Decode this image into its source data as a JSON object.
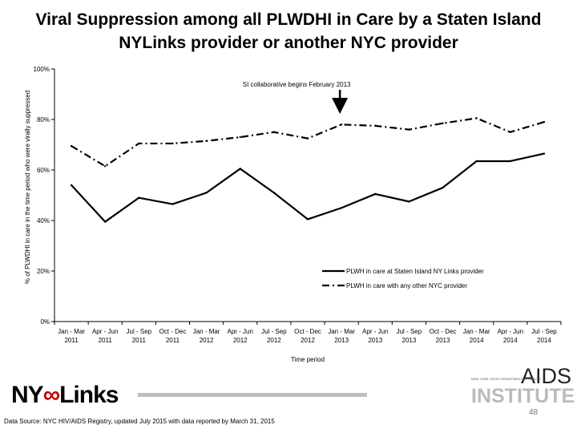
{
  "title": "Viral Suppression among all PLWDHI in Care by a Staten Island NYLinks provider or another NYC provider",
  "chart_data": {
    "type": "line",
    "title": "Viral Suppression among all PLWDHI in Care by a Staten Island NYLinks provider or another NYC provider",
    "xlabel": "Time period",
    "ylabel": "% of PLWDHI in care in the time period who were virally suppressed",
    "ylim": [
      0,
      100
    ],
    "yticks": [
      "0%",
      "20%",
      "40%",
      "60%",
      "80%",
      "100%"
    ],
    "grid": false,
    "legend_position": "bottom-right",
    "categories": [
      [
        "Jan - Mar",
        "2011"
      ],
      [
        "Apr - Jun",
        "2011"
      ],
      [
        "Jul - Sep",
        "2011"
      ],
      [
        "Oct - Dec",
        "2011"
      ],
      [
        "Jan - Mar",
        "2012"
      ],
      [
        "Apr - Jun",
        "2012"
      ],
      [
        "Jul - Sep",
        "2012"
      ],
      [
        "Oct - Dec",
        "2012"
      ],
      [
        "Jan - Mar",
        "2013"
      ],
      [
        "Apr - Jun",
        "2013"
      ],
      [
        "Jul - Sep",
        "2013"
      ],
      [
        "Oct - Dec",
        "2013"
      ],
      [
        "Jan - Mar",
        "2014"
      ],
      [
        "Apr - Jun",
        "2014"
      ],
      [
        "Jul - Sep",
        "2014"
      ]
    ],
    "series": [
      {
        "name": "PLWH in care at Staten Island NY Links provider",
        "style": "solid",
        "color": "#000000",
        "values": [
          54,
          39.5,
          49,
          46.5,
          51,
          60.5,
          51,
          40.5,
          45,
          50.5,
          47.5,
          53,
          63.5,
          63.5,
          66.5
        ]
      },
      {
        "name": "PLWH in care with any other NYC provider",
        "style": "dash-dot",
        "color": "#000000",
        "values": [
          69.5,
          61.5,
          70.5,
          70.5,
          71.5,
          73,
          75,
          72.5,
          78,
          77.5,
          76,
          78.5,
          80.5,
          75,
          79
        ]
      }
    ],
    "annotations": [
      {
        "text": "SI collaborative begins February 2013",
        "x_index": 8
      }
    ]
  },
  "footer": {
    "source": "Data Source: NYC HIV/AIDS Registry, updated July 2015 with data reported by March 31, 2015",
    "page_number": "48"
  },
  "logos": {
    "left": "NY Links",
    "right_main": "AIDS",
    "right_sub": "INSTITUTE",
    "right_small": "NEW YORK STATE DEPARTMENT OF HEALTH"
  }
}
